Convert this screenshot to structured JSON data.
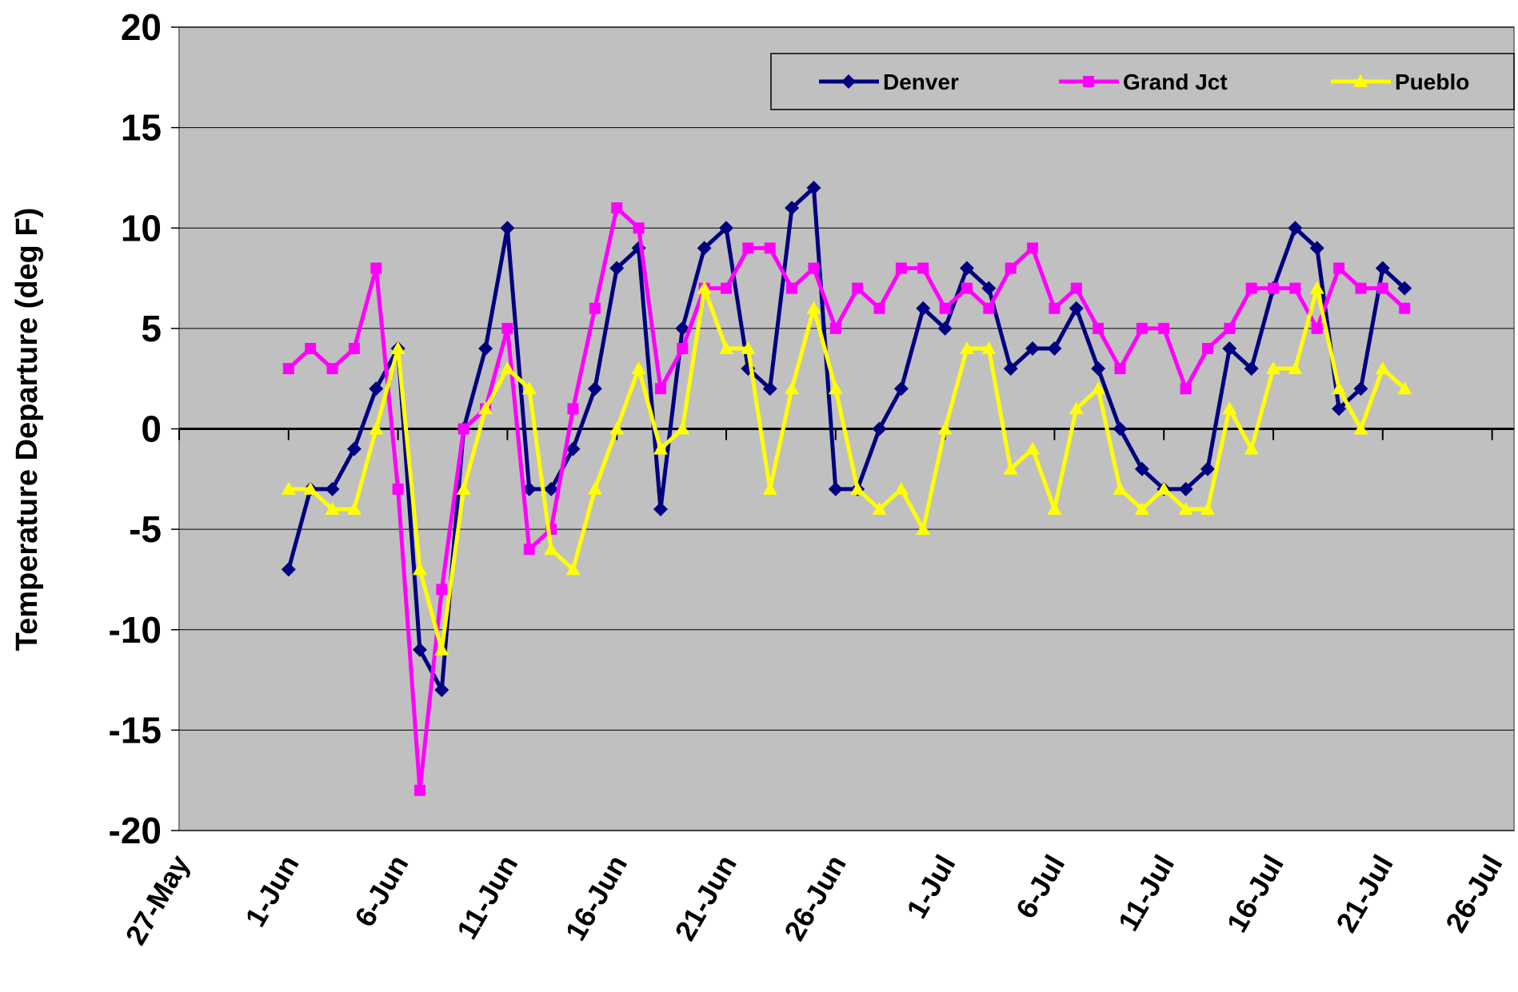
{
  "chart_data": {
    "type": "line",
    "y_label": "Temperature Departure (deg F)",
    "x": [
      "1-Jun",
      "2-Jun",
      "3-Jun",
      "4-Jun",
      "5-Jun",
      "6-Jun",
      "7-Jun",
      "8-Jun",
      "9-Jun",
      "10-Jun",
      "11-Jun",
      "12-Jun",
      "13-Jun",
      "14-Jun",
      "15-Jun",
      "16-Jun",
      "17-Jun",
      "18-Jun",
      "19-Jun",
      "20-Jun",
      "21-Jun",
      "22-Jun",
      "23-Jun",
      "24-Jun",
      "25-Jun",
      "26-Jun",
      "27-Jun",
      "28-Jun",
      "29-Jun",
      "30-Jun",
      "1-Jul",
      "2-Jul",
      "3-Jul",
      "4-Jul",
      "5-Jul",
      "6-Jul",
      "7-Jul",
      "8-Jul",
      "9-Jul",
      "10-Jul",
      "11-Jul",
      "12-Jul",
      "13-Jul",
      "14-Jul",
      "15-Jul",
      "16-Jul",
      "17-Jul",
      "18-Jul",
      "19-Jul",
      "20-Jul",
      "21-Jul",
      "22-Jul"
    ],
    "series": [
      {
        "name": "Denver",
        "color": "#000080",
        "marker": "diamond",
        "values": [
          -7,
          -3,
          -3,
          -1,
          2,
          4,
          -11,
          -13,
          0,
          4,
          10,
          -3,
          -3,
          -1,
          2,
          8,
          9,
          -4,
          5,
          9,
          10,
          3,
          2,
          11,
          12,
          -3,
          -3,
          0,
          2,
          6,
          5,
          8,
          7,
          3,
          4,
          4,
          6,
          3,
          0,
          -2,
          -3,
          -3,
          -2,
          4,
          3,
          7,
          10,
          9,
          1,
          2,
          8,
          7
        ]
      },
      {
        "name": "Grand Jct",
        "color": "#ff00ff",
        "marker": "square",
        "values": [
          3,
          4,
          3,
          4,
          8,
          -3,
          -18,
          -8,
          0,
          1,
          5,
          -6,
          -5,
          1,
          6,
          11,
          10,
          2,
          4,
          7,
          7,
          9,
          9,
          7,
          8,
          5,
          7,
          6,
          8,
          8,
          6,
          7,
          6,
          8,
          9,
          6,
          7,
          5,
          3,
          5,
          5,
          2,
          4,
          5,
          7,
          7,
          7,
          5,
          8,
          7,
          7,
          6
        ]
      },
      {
        "name": "Pueblo",
        "color": "#ffff00",
        "marker": "triangle",
        "values": [
          -3,
          -3,
          -4,
          -4,
          0,
          4,
          -7,
          -11,
          -3,
          1,
          3,
          2,
          -6,
          -7,
          -3,
          0,
          3,
          -1,
          0,
          7,
          4,
          4,
          -3,
          2,
          6,
          2,
          -3,
          -4,
          -3,
          -5,
          0,
          4,
          4,
          -2,
          -1,
          -4,
          1,
          2,
          -3,
          -4,
          -3,
          -4,
          -4,
          1,
          -1,
          3,
          3,
          7,
          2,
          0,
          3,
          2
        ]
      }
    ],
    "xlim": [
      "27-May",
      "27-Jul"
    ],
    "xticks": [
      "27-May",
      "1-Jun",
      "6-Jun",
      "11-Jun",
      "16-Jun",
      "21-Jun",
      "26-Jun",
      "1-Jul",
      "6-Jul",
      "11-Jul",
      "16-Jul",
      "21-Jul",
      "26-Jul"
    ],
    "ylim": [
      -20,
      20
    ],
    "yticks": [
      -20,
      -15,
      -10,
      -5,
      0,
      5,
      10,
      15,
      20
    ],
    "grid": true,
    "legend": "top-right",
    "background": "#c0c0c0"
  }
}
